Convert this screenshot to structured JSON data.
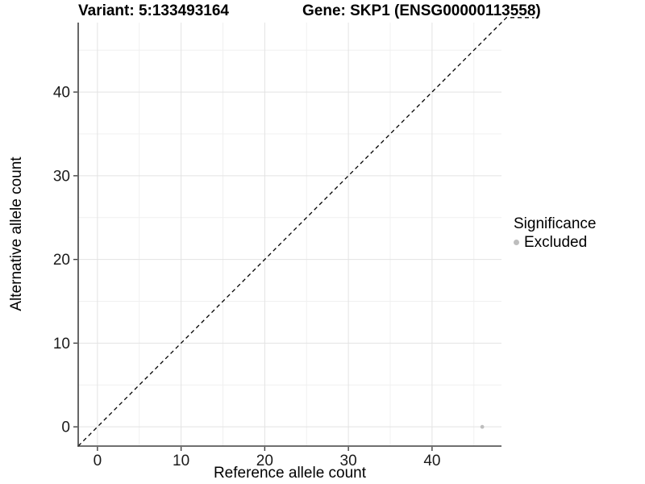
{
  "header": {
    "title_left": "Variant: 5:133493164",
    "title_right": "Gene: SKP1 (ENSG00000113558)"
  },
  "chart_data": {
    "type": "scatter",
    "title": "Variant: 5:133493164   Gene: SKP1 (ENSG00000113558)",
    "xlabel": "Reference allele count",
    "ylabel": "Alternative allele count",
    "xlim": [
      -2.3,
      48.3
    ],
    "ylim": [
      -2.3,
      48.3
    ],
    "x_ticks": [
      0,
      10,
      20,
      30,
      40
    ],
    "y_ticks": [
      0,
      10,
      20,
      30,
      40
    ],
    "x_minor_ticks": [
      5,
      15,
      25,
      35,
      45
    ],
    "y_minor_ticks": [
      5,
      15,
      25,
      35,
      45
    ],
    "grid": true,
    "points": [
      {
        "x": 46,
        "y": 0,
        "series": "Excluded"
      }
    ],
    "series": [
      {
        "name": "Excluded",
        "color": "#bebebe",
        "marker": "circle"
      }
    ],
    "reference_line": {
      "type": "identity",
      "style": "dashed",
      "color": "#000000",
      "y_clamp": 48.9,
      "x_draw_range": [
        -2.3,
        52.2
      ]
    },
    "legend": {
      "title": "Significance",
      "position": "right",
      "items": [
        {
          "label": "Excluded",
          "color": "#bebebe",
          "marker": "circle"
        }
      ]
    },
    "colors": {
      "grid_major": "#e3e3e3",
      "grid_minor": "#f0f0f0",
      "axis_line": "#404040",
      "tick_text": "#1a1a1a"
    }
  }
}
